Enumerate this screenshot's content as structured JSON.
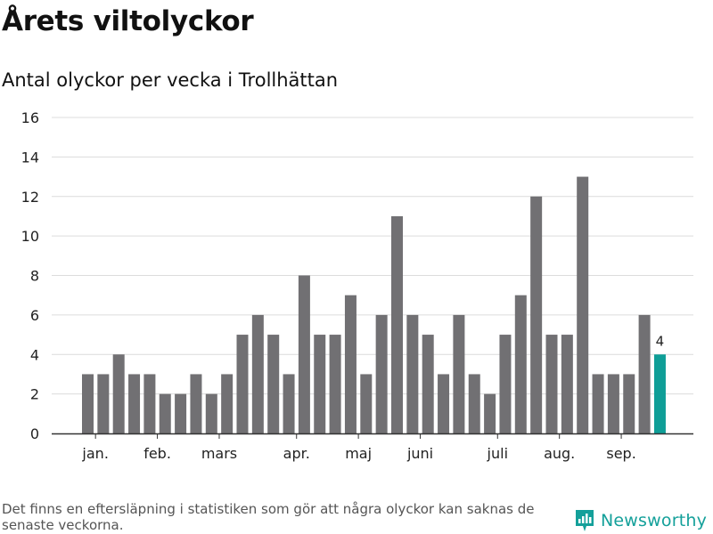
{
  "title": "Årets viltolyckor",
  "subtitle": "Antal olyckor per vecka i Trollhättan",
  "footnote": "Det finns en eftersläpning i statistiken som gör att några olyckor kan saknas de senaste veckorna.",
  "brand": "Newsworthy",
  "colors": {
    "bar": "#717073",
    "highlight": "#0f9e97",
    "grid": "#dcdcdc",
    "axis": "#333333",
    "brand": "#14a09a"
  },
  "chart_data": {
    "type": "bar",
    "ylim": [
      0,
      16
    ],
    "yticks": [
      0,
      2,
      4,
      6,
      8,
      10,
      12,
      14,
      16
    ],
    "values": [
      3,
      3,
      4,
      3,
      3,
      2,
      2,
      3,
      2,
      3,
      5,
      6,
      5,
      3,
      8,
      5,
      5,
      7,
      3,
      6,
      11,
      6,
      5,
      3,
      6,
      3,
      2,
      5,
      7,
      12,
      5,
      5,
      13,
      3,
      3,
      3,
      6,
      4
    ],
    "highlight_index": 37,
    "highlight_label": "4",
    "month_labels": [
      {
        "label": "jan.",
        "bar_index": 0.5
      },
      {
        "label": "feb.",
        "bar_index": 4.5
      },
      {
        "label": "mars",
        "bar_index": 8.5
      },
      {
        "label": "apr.",
        "bar_index": 13.5
      },
      {
        "label": "maj",
        "bar_index": 17.5
      },
      {
        "label": "juni",
        "bar_index": 21.5
      },
      {
        "label": "juli",
        "bar_index": 26.5
      },
      {
        "label": "aug.",
        "bar_index": 30.5
      },
      {
        "label": "sep.",
        "bar_index": 34.5
      }
    ],
    "grid": true,
    "xlabel": "",
    "ylabel": ""
  }
}
